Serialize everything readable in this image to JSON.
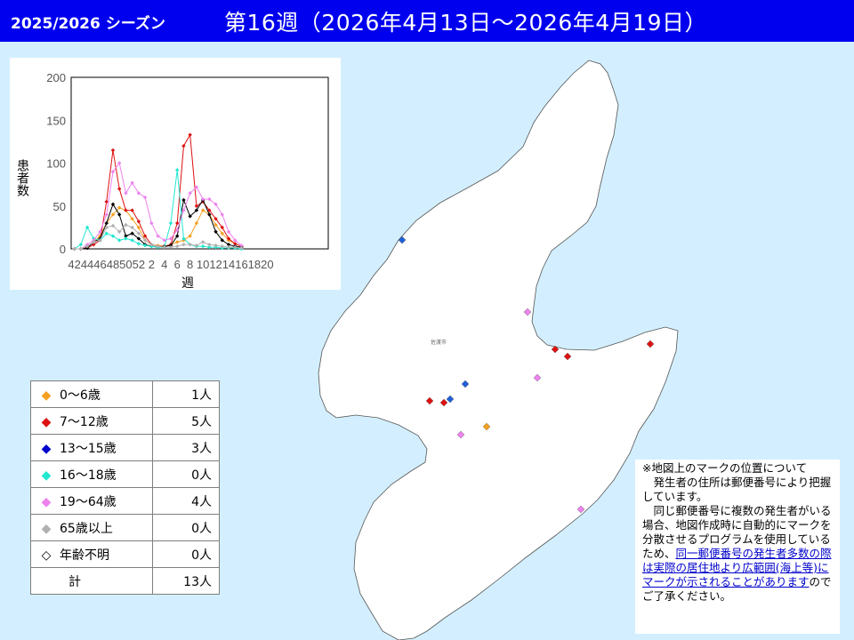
{
  "header": {
    "season": "2025/2026 シーズン",
    "week": "第16週（2026年4月13日～2026年4月19日）"
  },
  "map": {
    "city_label": "佐渡市",
    "colors": {
      "sea": "#d3efff",
      "land": "#ffffff"
    },
    "markers": [
      {
        "group": "13-15",
        "color": "#1f5fd6"
      },
      {
        "group": "19-64",
        "color": "#ee82ee"
      },
      {
        "group": "7-12",
        "color": "#dd1111"
      },
      {
        "group": "7-12",
        "color": "#dd1111"
      },
      {
        "group": "7-12",
        "color": "#dd1111"
      },
      {
        "group": "19-64",
        "color": "#ee82ee"
      },
      {
        "group": "13-15",
        "color": "#1f5fd6"
      },
      {
        "group": "7-12",
        "color": "#dd1111"
      },
      {
        "group": "7-12",
        "color": "#dd1111"
      },
      {
        "group": "13-15",
        "color": "#1f5fd6"
      },
      {
        "group": "0-6",
        "color": "#f5a020"
      },
      {
        "group": "19-64",
        "color": "#ee82ee"
      },
      {
        "group": "19-64",
        "color": "#ee82ee"
      }
    ]
  },
  "legend": {
    "rows": [
      {
        "label": "0～6歳",
        "count": "1人",
        "color": "#f5a020",
        "icon": "diamond-filled-icon"
      },
      {
        "label": "7～12歳",
        "count": "5人",
        "color": "#dd1111",
        "icon": "diamond-filled-icon"
      },
      {
        "label": "13～15歳",
        "count": "3人",
        "color": "#0000cc",
        "icon": "diamond-filled-icon"
      },
      {
        "label": "16～18歳",
        "count": "0人",
        "color": "#22e8d0",
        "icon": "diamond-filled-icon"
      },
      {
        "label": "19～64歳",
        "count": "4人",
        "color": "#ee82ee",
        "icon": "diamond-filled-icon"
      },
      {
        "label": "65歳以上",
        "count": "0人",
        "color": "#b0b0b0",
        "icon": "diamond-filled-icon"
      },
      {
        "label": "年齢不明",
        "count": "0人",
        "color": "#000000",
        "icon": "diamond-outline-icon"
      }
    ],
    "total_label": "計",
    "total_count": "13人"
  },
  "notice": {
    "title": "※地図上のマークの位置について",
    "p1": "発生者の住所は郵便番号により把握しています。",
    "p2_pre": "同じ郵便番号に複数の発生者がいる場合、地図作成時に自動的にマークを分散させるプログラムを使用しているため、",
    "p2_link": "同一郵便番号の発生者多数の際は実際の居住地より広範囲(海上等)にマークが示されることがあります",
    "p2_post": "のでご了承ください。"
  },
  "chart_data": {
    "type": "line",
    "ylabel": "患者数",
    "xlabel": "週",
    "ylim": [
      0,
      200
    ],
    "yticks": [
      "0",
      "50",
      "100",
      "150",
      "200"
    ],
    "xtick_labels": [
      "42",
      "44",
      "46",
      "48",
      "50",
      "52",
      "2",
      "4",
      "6",
      "8",
      "10",
      "12",
      "14",
      "16",
      "18",
      "20"
    ],
    "weeks": [
      42,
      43,
      44,
      45,
      46,
      47,
      48,
      49,
      50,
      51,
      52,
      1,
      2,
      3,
      4,
      5,
      6,
      7,
      8,
      9,
      10,
      11,
      12,
      13,
      14,
      15,
      16
    ],
    "series": [
      {
        "color": "#f5a020",
        "values": [
          0,
          0,
          2,
          8,
          15,
          30,
          40,
          48,
          45,
          35,
          25,
          10,
          5,
          4,
          3,
          5,
          8,
          10,
          15,
          30,
          45,
          40,
          28,
          18,
          10,
          6,
          3
        ]
      },
      {
        "color": "#dd1111",
        "values": [
          0,
          0,
          1,
          5,
          10,
          55,
          115,
          70,
          45,
          45,
          32,
          15,
          5,
          3,
          3,
          5,
          30,
          120,
          133,
          50,
          55,
          45,
          35,
          25,
          12,
          6,
          3
        ]
      },
      {
        "color": "#000000",
        "values": [
          0,
          0,
          1,
          8,
          12,
          30,
          52,
          40,
          15,
          18,
          12,
          5,
          3,
          2,
          3,
          4,
          15,
          57,
          38,
          45,
          57,
          40,
          20,
          10,
          5,
          3,
          2
        ]
      },
      {
        "color": "#22e8d0",
        "values": [
          0,
          5,
          25,
          12,
          10,
          18,
          15,
          10,
          12,
          10,
          6,
          4,
          3,
          2,
          2,
          30,
          92,
          12,
          5,
          3,
          3,
          2,
          2,
          1,
          1,
          1,
          0
        ]
      },
      {
        "color": "#ee82ee",
        "values": [
          0,
          0,
          5,
          10,
          20,
          40,
          90,
          100,
          65,
          77,
          65,
          60,
          30,
          15,
          10,
          12,
          22,
          45,
          65,
          72,
          58,
          58,
          52,
          40,
          20,
          10,
          4
        ]
      },
      {
        "color": "#b0b0b0",
        "values": [
          0,
          0,
          3,
          8,
          10,
          25,
          27,
          20,
          28,
          25,
          18,
          10,
          5,
          3,
          2,
          2,
          3,
          5,
          5,
          4,
          8,
          5,
          4,
          3,
          2,
          2,
          1
        ]
      }
    ]
  }
}
